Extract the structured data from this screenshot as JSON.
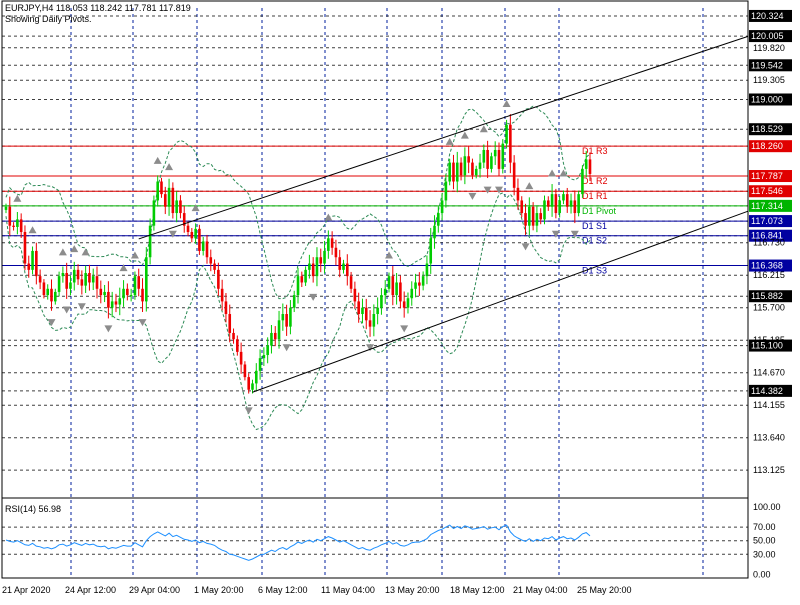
{
  "header": {
    "symbol_line": "EURJPY,H4  118.053 118.242 117.781 117.819",
    "pivot_note": "Showing Daily Pivots."
  },
  "colors": {
    "bull": "#00cc00",
    "bear": "#ee0000",
    "grid": "#001f9e",
    "pivot_level": "#00b400",
    "resistance": "#e00000",
    "support": "#0000a0",
    "bands": "#2e8b57",
    "rsi": "#1e90ff",
    "fractal": "#8c8c8c",
    "trendline": "#000000"
  },
  "chart_data": [
    {
      "type": "candlestick",
      "title": "EURJPY,H4",
      "values": {
        "open": 118.053,
        "high": 118.242,
        "low": 117.781,
        "close": 117.819
      },
      "ylim": [
        112.7,
        120.45
      ],
      "y_ticks": [
        "120.324",
        "120.005",
        "119.820",
        "119.542",
        "119.305",
        "119.000",
        "118.529",
        "118.260",
        "117.787",
        "117.546",
        "117.314",
        "117.073",
        "116.841",
        "116.730",
        "116.368",
        "116.215",
        "115.882",
        "115.700",
        "115.185",
        "115.100",
        "114.670",
        "114.382",
        "114.155",
        "113.640",
        "113.125"
      ],
      "boxed_y_labels": [
        "120.324",
        "120.005",
        "119.542",
        "119.000",
        "118.529",
        "118.260",
        "117.787",
        "117.546",
        "117.314",
        "117.073",
        "116.841",
        "116.368",
        "115.882",
        "115.100",
        "114.382"
      ],
      "x_labels": [
        "21 Apr 2020",
        "24 Apr 12:00",
        "29 Apr 04:00",
        "1 May 20:00",
        "6 May 12:00",
        "11 May 04:00",
        "13 May 20:00",
        "18 May 12:00",
        "21 May 04:00",
        "25 May 20:00"
      ],
      "pivots": [
        {
          "label": "D1  R3",
          "value": 118.26,
          "kind": "resistance"
        },
        {
          "label": "D1  R2",
          "value": 117.787,
          "kind": "resistance"
        },
        {
          "label": "D1  R1",
          "value": 117.546,
          "kind": "resistance"
        },
        {
          "label": "D1  Pivot",
          "value": 117.314,
          "kind": "pivot"
        },
        {
          "label": "D1  S1",
          "value": 117.073,
          "kind": "support"
        },
        {
          "label": "D1  S2",
          "value": 116.841,
          "kind": "support"
        },
        {
          "label": "D1  S3",
          "value": 116.368,
          "kind": "support"
        }
      ],
      "channel": {
        "upper": [
          [
            35,
            116.79
          ],
          [
            184,
            120.0
          ]
        ],
        "lower": [
          [
            65,
            114.36
          ],
          [
            184,
            117.23
          ]
        ]
      },
      "closes": [
        117.3,
        117.0,
        116.98,
        117.1,
        116.9,
        116.4,
        116.3,
        116.6,
        116.2,
        116.1,
        115.9,
        116.0,
        115.8,
        115.95,
        116.2,
        116.25,
        116.0,
        116.1,
        116.3,
        116.15,
        116.05,
        116.25,
        116.1,
        116.2,
        116.0,
        115.9,
        115.95,
        115.7,
        115.8,
        115.75,
        115.85,
        116.0,
        115.9,
        115.9,
        116.2,
        116.0,
        115.8,
        116.5,
        117.0,
        117.4,
        117.7,
        117.5,
        117.3,
        117.6,
        117.2,
        117.4,
        117.2,
        117.0,
        116.9,
        116.8,
        116.95,
        116.6,
        116.75,
        116.5,
        116.4,
        116.3,
        116.0,
        115.8,
        115.6,
        115.3,
        115.2,
        115.0,
        114.8,
        114.6,
        114.4,
        114.5,
        114.7,
        114.9,
        114.95,
        115.1,
        115.3,
        115.2,
        115.5,
        115.6,
        115.4,
        115.7,
        115.9,
        116.2,
        116.1,
        116.3,
        116.4,
        116.2,
        116.5,
        116.4,
        116.6,
        116.8,
        116.65,
        116.5,
        116.3,
        116.4,
        116.2,
        116.0,
        115.8,
        115.6,
        115.7,
        115.5,
        115.4,
        115.6,
        115.7,
        115.9,
        116.0,
        116.2,
        115.9,
        116.1,
        115.8,
        115.7,
        115.85,
        116.0,
        116.1,
        116.05,
        116.2,
        116.4,
        116.8,
        117.0,
        117.2,
        117.4,
        117.7,
        118.0,
        117.7,
        118.0,
        117.8,
        118.1,
        118.0,
        117.8,
        117.9,
        118.0,
        118.2,
        117.9,
        118.1,
        118.2,
        117.9,
        118.3,
        118.6,
        118.0,
        117.6,
        117.4,
        117.2,
        117.0,
        117.3,
        117.0,
        117.2,
        117.1,
        117.4,
        117.3,
        117.5,
        117.2,
        117.4,
        117.5,
        117.3,
        117.4,
        117.2,
        117.5,
        117.9,
        118.05,
        117.82
      ]
    },
    {
      "type": "line",
      "title": "RSI(14) 56.98",
      "ylim": [
        -5,
        110
      ],
      "y_ticks": [
        "100.00",
        "70.00",
        "50.00",
        "30.00",
        "0.00"
      ],
      "levels": [
        70,
        50,
        30
      ],
      "values": [
        51,
        49,
        48,
        50,
        47,
        44,
        43,
        46,
        42,
        41,
        39,
        40,
        38,
        40,
        44,
        45,
        42,
        44,
        47,
        45,
        43,
        46,
        44,
        45,
        42,
        41,
        42,
        38,
        40,
        39,
        41,
        43,
        42,
        42,
        47,
        44,
        41,
        50,
        56,
        60,
        63,
        60,
        57,
        61,
        56,
        58,
        55,
        52,
        51,
        49,
        51,
        47,
        49,
        46,
        45,
        43,
        39,
        36,
        34,
        30,
        29,
        27,
        25,
        23,
        21,
        23,
        26,
        29,
        30,
        33,
        36,
        34,
        38,
        40,
        37,
        41,
        44,
        48,
        46,
        49,
        51,
        48,
        52,
        50,
        53,
        56,
        54,
        51,
        48,
        50,
        47,
        44,
        41,
        38,
        40,
        37,
        36,
        39,
        41,
        44,
        46,
        49,
        45,
        47,
        43,
        42,
        44,
        47,
        48,
        48,
        50,
        53,
        59,
        62,
        65,
        67,
        70,
        73,
        68,
        71,
        68,
        72,
        70,
        67,
        68,
        69,
        71,
        67,
        69,
        70,
        66,
        71,
        73,
        63,
        57,
        54,
        51,
        49,
        53,
        49,
        52,
        50,
        54,
        53,
        56,
        51,
        54,
        56,
        53,
        54,
        51,
        55,
        60,
        62,
        57
      ]
    }
  ]
}
